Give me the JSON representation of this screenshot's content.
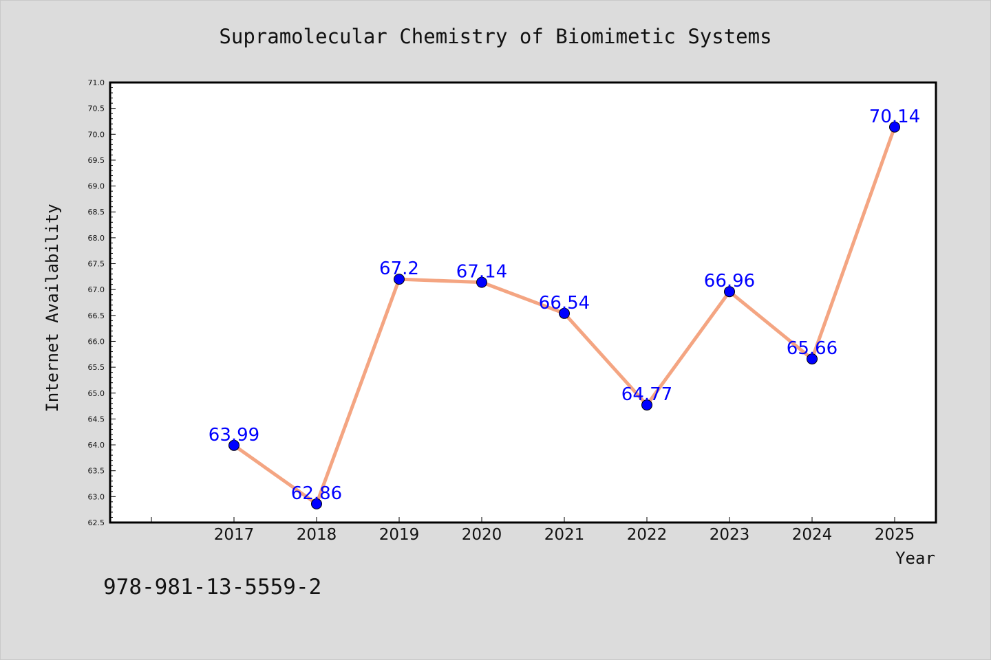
{
  "chart_data": {
    "type": "line",
    "title": "Supramolecular Chemistry of Biomimetic Systems",
    "xlabel": "Year",
    "ylabel": "Internet Availability",
    "categories": [
      "2017",
      "2018",
      "2019",
      "2020",
      "2021",
      "2022",
      "2023",
      "2024",
      "2025"
    ],
    "values": [
      63.99,
      62.86,
      67.2,
      67.14,
      66.54,
      64.77,
      66.96,
      65.66,
      70.14
    ],
    "data_labels": [
      "63.99",
      "62.86",
      "67.2",
      "67.14",
      "66.54",
      "64.77",
      "66.96",
      "65.66",
      "70.14"
    ],
    "ylim": [
      62.5,
      71.0
    ],
    "yticks": [
      "62.5",
      "63.0",
      "63.5",
      "64.0",
      "64.5",
      "65.0",
      "65.5",
      "66.0",
      "66.5",
      "67.0",
      "67.5",
      "68.0",
      "68.5",
      "69.0",
      "69.5",
      "70.0",
      "70.5",
      "71.0"
    ],
    "grid": false,
    "line_color": "#f4a582",
    "marker_color": "#0000ff",
    "label_color": "#0000ff",
    "background": "#dcdcdc",
    "plot_background": "#ffffff"
  },
  "footer": {
    "isbn": "978-981-13-5559-2"
  }
}
